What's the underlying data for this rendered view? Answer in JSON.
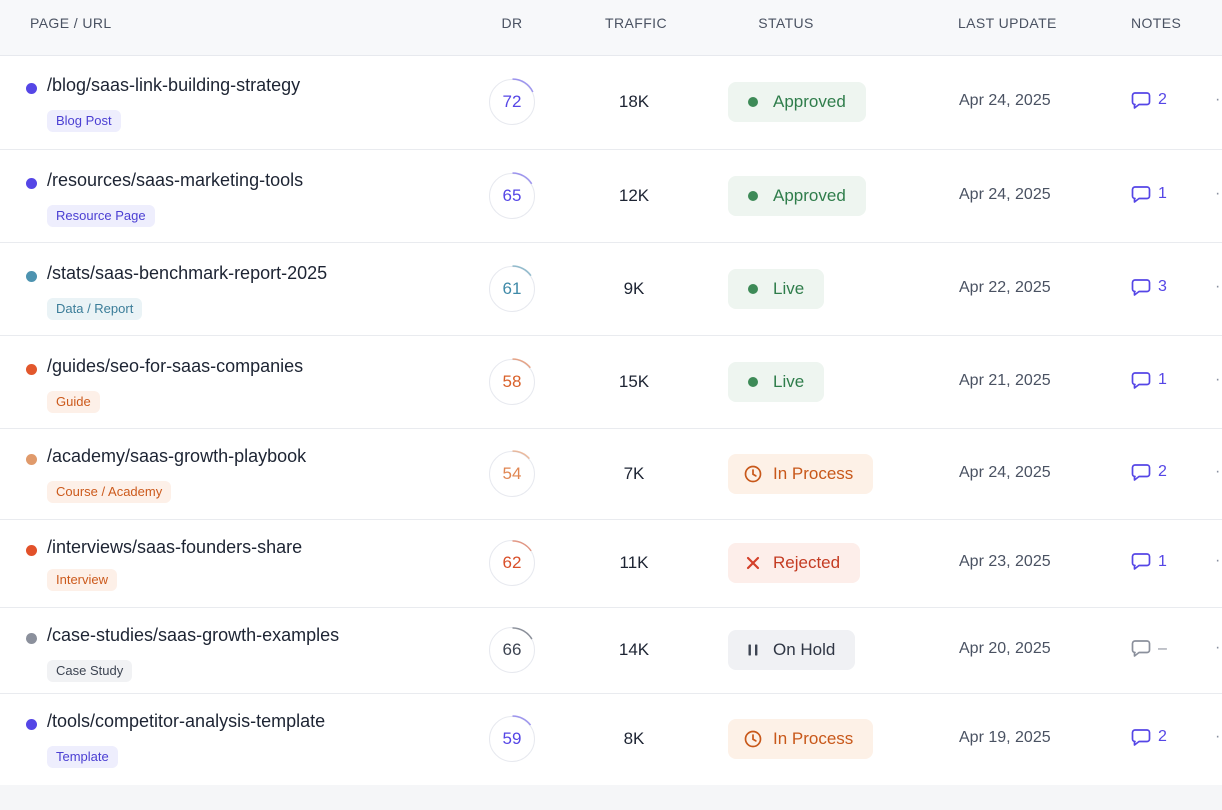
{
  "header": {
    "page_url": "PAGE / URL",
    "dr": "DR",
    "traffic": "TRAFFIC",
    "status": "STATUS",
    "last_update": "LAST UPDATE",
    "notes": "NOTES"
  },
  "rows": [
    {
      "url": "/blog/saas-link-building-strategy",
      "tag": "Blog Post",
      "dr": "72",
      "traffic": "18K",
      "status": "Approved",
      "status_kind": "approved",
      "date": "Apr 24, 2025",
      "notes": "2",
      "dot_color": "#5546e6",
      "tag_bg": "#eeeefd",
      "tag_color": "#4b3fd3",
      "dr_color": "#5546e6",
      "note_color": "#5546e6"
    },
    {
      "url": "/resources/saas-marketing-tools",
      "tag": "Resource Page",
      "dr": "65",
      "traffic": "12K",
      "status": "Approved",
      "status_kind": "approved",
      "date": "Apr 24, 2025",
      "notes": "1",
      "dot_color": "#5546e6",
      "tag_bg": "#eeeefd",
      "tag_color": "#4b3fd3",
      "dr_color": "#5546e6",
      "note_color": "#5546e6"
    },
    {
      "url": "/stats/saas-benchmark-report-2025",
      "tag": "Data / Report",
      "dr": "61",
      "traffic": "9K",
      "status": "Live",
      "status_kind": "live",
      "date": "Apr 22, 2025",
      "notes": "3",
      "dot_color": "#4d93b0",
      "tag_bg": "#eaf3f6",
      "tag_color": "#3b7d99",
      "dr_color": "#3f8aa8",
      "note_color": "#5546e6"
    },
    {
      "url": "/guides/seo-for-saas-companies",
      "tag": "Guide",
      "dr": "58",
      "traffic": "15K",
      "status": "Live",
      "status_kind": "live",
      "date": "Apr 21, 2025",
      "notes": "1",
      "dot_color": "#e2572c",
      "tag_bg": "#fdf0e8",
      "tag_color": "#cc5a1c",
      "dr_color": "#d9612a",
      "note_color": "#5546e6"
    },
    {
      "url": "/academy/saas-growth-playbook",
      "tag": "Course / Academy",
      "dr": "54",
      "traffic": "7K",
      "status": "In Process",
      "status_kind": "process",
      "date": "Apr 24, 2025",
      "notes": "2",
      "dot_color": "#e09a6b",
      "tag_bg": "#fdf0e8",
      "tag_color": "#cc5a1c",
      "dr_color": "#e08652",
      "note_color": "#5546e6"
    },
    {
      "url": "/interviews/saas-founders-share",
      "tag": "Interview",
      "dr": "62",
      "traffic": "11K",
      "status": "Rejected",
      "status_kind": "rejected",
      "date": "Apr 23, 2025",
      "notes": "1",
      "dot_color": "#e2512a",
      "tag_bg": "#fdf0e8",
      "tag_color": "#cc5a1c",
      "dr_color": "#d9502a",
      "note_color": "#5546e6"
    },
    {
      "url": "/case-studies/saas-growth-examples",
      "tag": "Case Study",
      "dr": "66",
      "traffic": "14K",
      "status": "On Hold",
      "status_kind": "hold",
      "date": "Apr 20, 2025",
      "notes": "–",
      "dot_color": "#8b909c",
      "tag_bg": "#f1f2f4",
      "tag_color": "#3d4452",
      "dr_color": "#3d4452",
      "note_color": "#8b909c"
    },
    {
      "url": "/tools/competitor-analysis-template",
      "tag": "Template",
      "dr": "59",
      "traffic": "8K",
      "status": "In Process",
      "status_kind": "process",
      "date": "Apr 19, 2025",
      "notes": "2",
      "dot_color": "#5546e6",
      "tag_bg": "#eeeefd",
      "tag_color": "#4b3fd3",
      "dr_color": "#5546e6",
      "note_color": "#5546e6"
    }
  ]
}
